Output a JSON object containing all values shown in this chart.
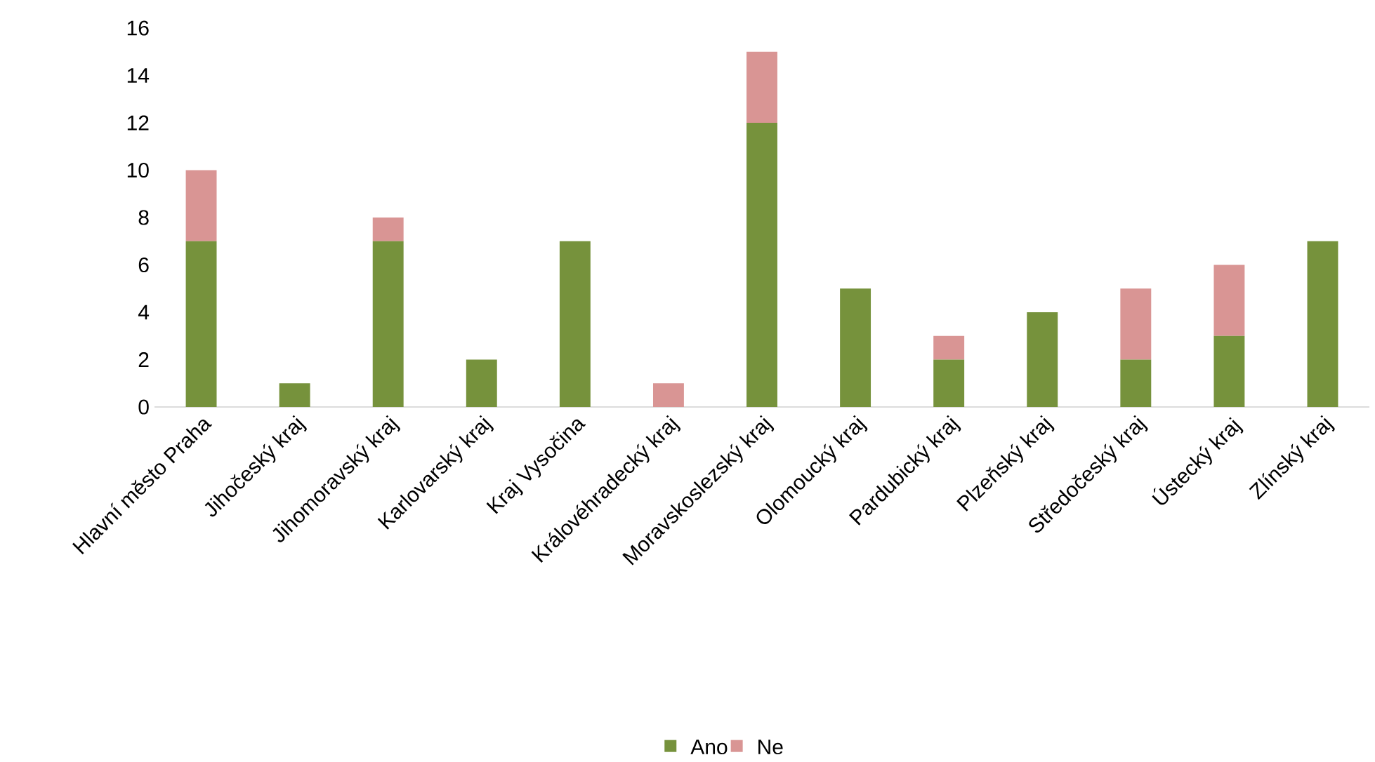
{
  "chart_data": {
    "type": "bar",
    "stacked": true,
    "categories": [
      "Hlavní město Praha",
      "Jihočeský kraj",
      "Jihomoravský kraj",
      "Karlovarský kraj",
      "Kraj Vysočina",
      "Královéhradecký kraj",
      "Moravskoslezský kraj",
      "Olomoucký kraj",
      "Pardubický kraj",
      "Plzeňský kraj",
      "Středočeský kraj",
      "Ústecký kraj",
      "Zlínský kraj"
    ],
    "series": [
      {
        "name": "Ano",
        "color": "#76923c",
        "values": [
          7,
          1,
          7,
          2,
          7,
          0,
          12,
          5,
          2,
          4,
          2,
          3,
          7
        ]
      },
      {
        "name": "Ne",
        "color": "#d99594",
        "values": [
          3,
          0,
          1,
          0,
          0,
          1,
          3,
          0,
          1,
          0,
          3,
          3,
          0
        ]
      }
    ],
    "ylim": [
      0,
      16
    ],
    "yticks": [
      0,
      2,
      4,
      6,
      8,
      10,
      12,
      14,
      16
    ],
    "grid": false,
    "legend": "bottom"
  }
}
